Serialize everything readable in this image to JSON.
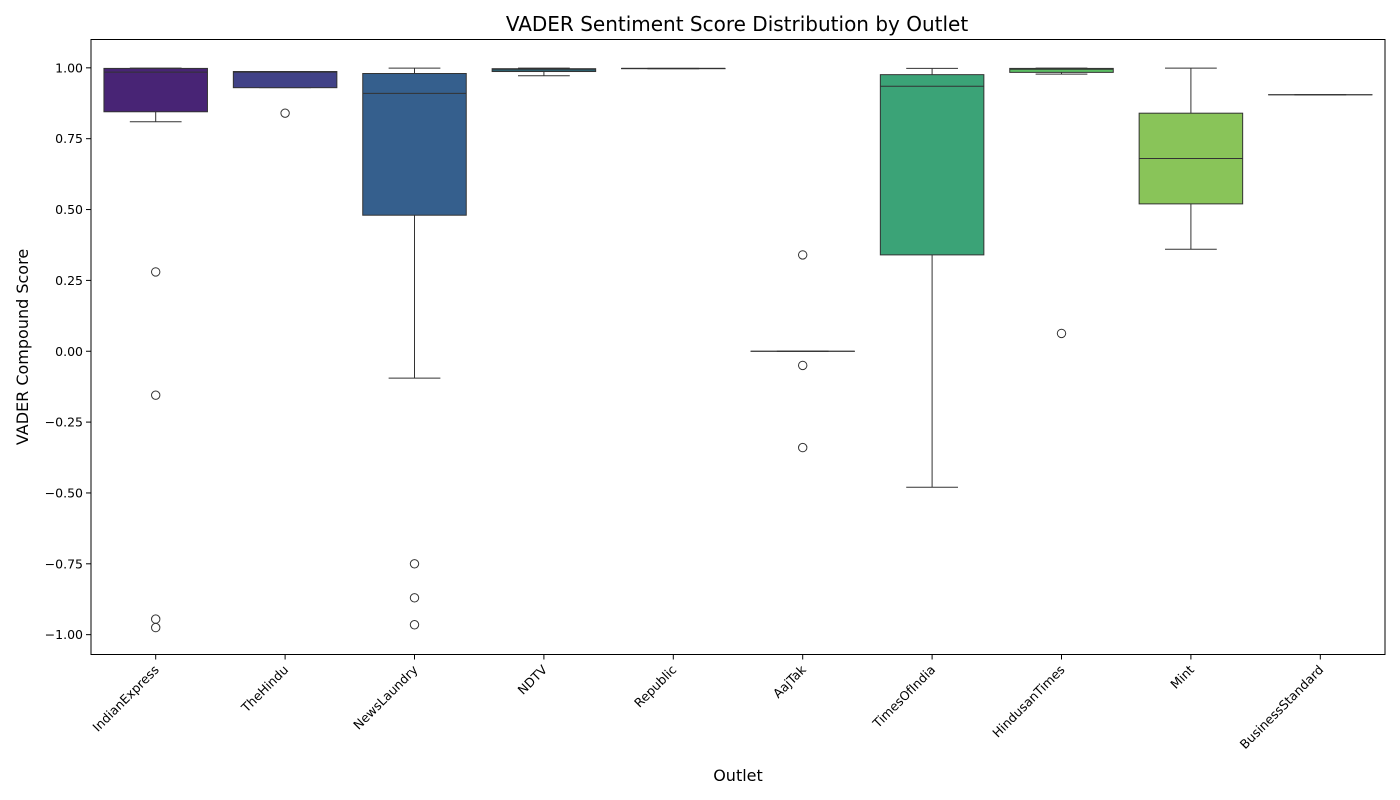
{
  "chart_data": {
    "type": "box",
    "title": "VADER Sentiment Score Distribution by Outlet",
    "xlabel": "Outlet",
    "ylabel": "VADER Compound Score",
    "ylim": [
      -1.07,
      1.1
    ],
    "yticks": [
      1.0,
      0.75,
      0.5,
      0.25,
      0.0,
      -0.25,
      -0.5,
      -0.75,
      -1.0
    ],
    "ytick_labels": [
      "1.00",
      "0.75",
      "0.50",
      "0.25",
      "0.00",
      "−0.25",
      "−0.50",
      "−0.75",
      "−1.00"
    ],
    "grid": false,
    "categories": [
      "IndianExpress",
      "TheHindu",
      "NewsLaundry",
      "NDTV",
      "Republic",
      "AajTak",
      "TimesOfIndia",
      "HindusanTimes",
      "Mint",
      "BusinessStandard"
    ],
    "boxes": [
      {
        "name": "IndianExpress",
        "color": "#482475",
        "whisker_low": 0.81,
        "q1": 0.845,
        "median": 0.985,
        "q3": 0.998,
        "whisker_high": 0.999,
        "outliers": [
          0.28,
          -0.155,
          -0.945,
          -0.975
        ]
      },
      {
        "name": "TheHindu",
        "color": "#414287",
        "whisker_low": 0.93,
        "q1": 0.93,
        "median": 0.985,
        "q3": 0.987,
        "whisker_high": 0.987,
        "outliers": [
          0.84
        ]
      },
      {
        "name": "NewsLaundry",
        "color": "#355f8d",
        "whisker_low": -0.095,
        "q1": 0.48,
        "median": 0.91,
        "q3": 0.98,
        "whisker_high": 0.999,
        "outliers": [
          -0.75,
          -0.87,
          -0.965
        ]
      },
      {
        "name": "NDTV",
        "color": "#2a788e",
        "whisker_low": 0.972,
        "q1": 0.987,
        "median": 0.993,
        "q3": 0.997,
        "whisker_high": 0.999,
        "outliers": []
      },
      {
        "name": "Republic",
        "color": "#21918c",
        "whisker_low": 0.997,
        "q1": 0.997,
        "median": 0.998,
        "q3": 0.998,
        "whisker_high": 0.998,
        "outliers": []
      },
      {
        "name": "AajTak",
        "color": "#22a884",
        "whisker_low": 0.0,
        "q1": 0.0,
        "median": 0.0,
        "q3": 0.0,
        "whisker_high": 0.0,
        "outliers": [
          0.34,
          -0.05,
          -0.34
        ]
      },
      {
        "name": "TimesOfIndia",
        "color": "#3ba377",
        "whisker_low": -0.48,
        "q1": 0.34,
        "median": 0.935,
        "q3": 0.976,
        "whisker_high": 0.998,
        "outliers": []
      },
      {
        "name": "HindusanTimes",
        "color": "#5bbd63",
        "whisker_low": 0.978,
        "q1": 0.984,
        "median": 0.995,
        "q3": 0.998,
        "whisker_high": 0.999,
        "outliers": [
          0.063
        ]
      },
      {
        "name": "Mint",
        "color": "#89c459",
        "whisker_low": 0.36,
        "q1": 0.52,
        "median": 0.68,
        "q3": 0.84,
        "whisker_high": 0.999,
        "outliers": []
      },
      {
        "name": "BusinessStandard",
        "color": "#bddf26",
        "whisker_low": 0.905,
        "q1": 0.905,
        "median": 0.905,
        "q3": 0.905,
        "whisker_high": 0.905,
        "outliers": []
      }
    ]
  }
}
